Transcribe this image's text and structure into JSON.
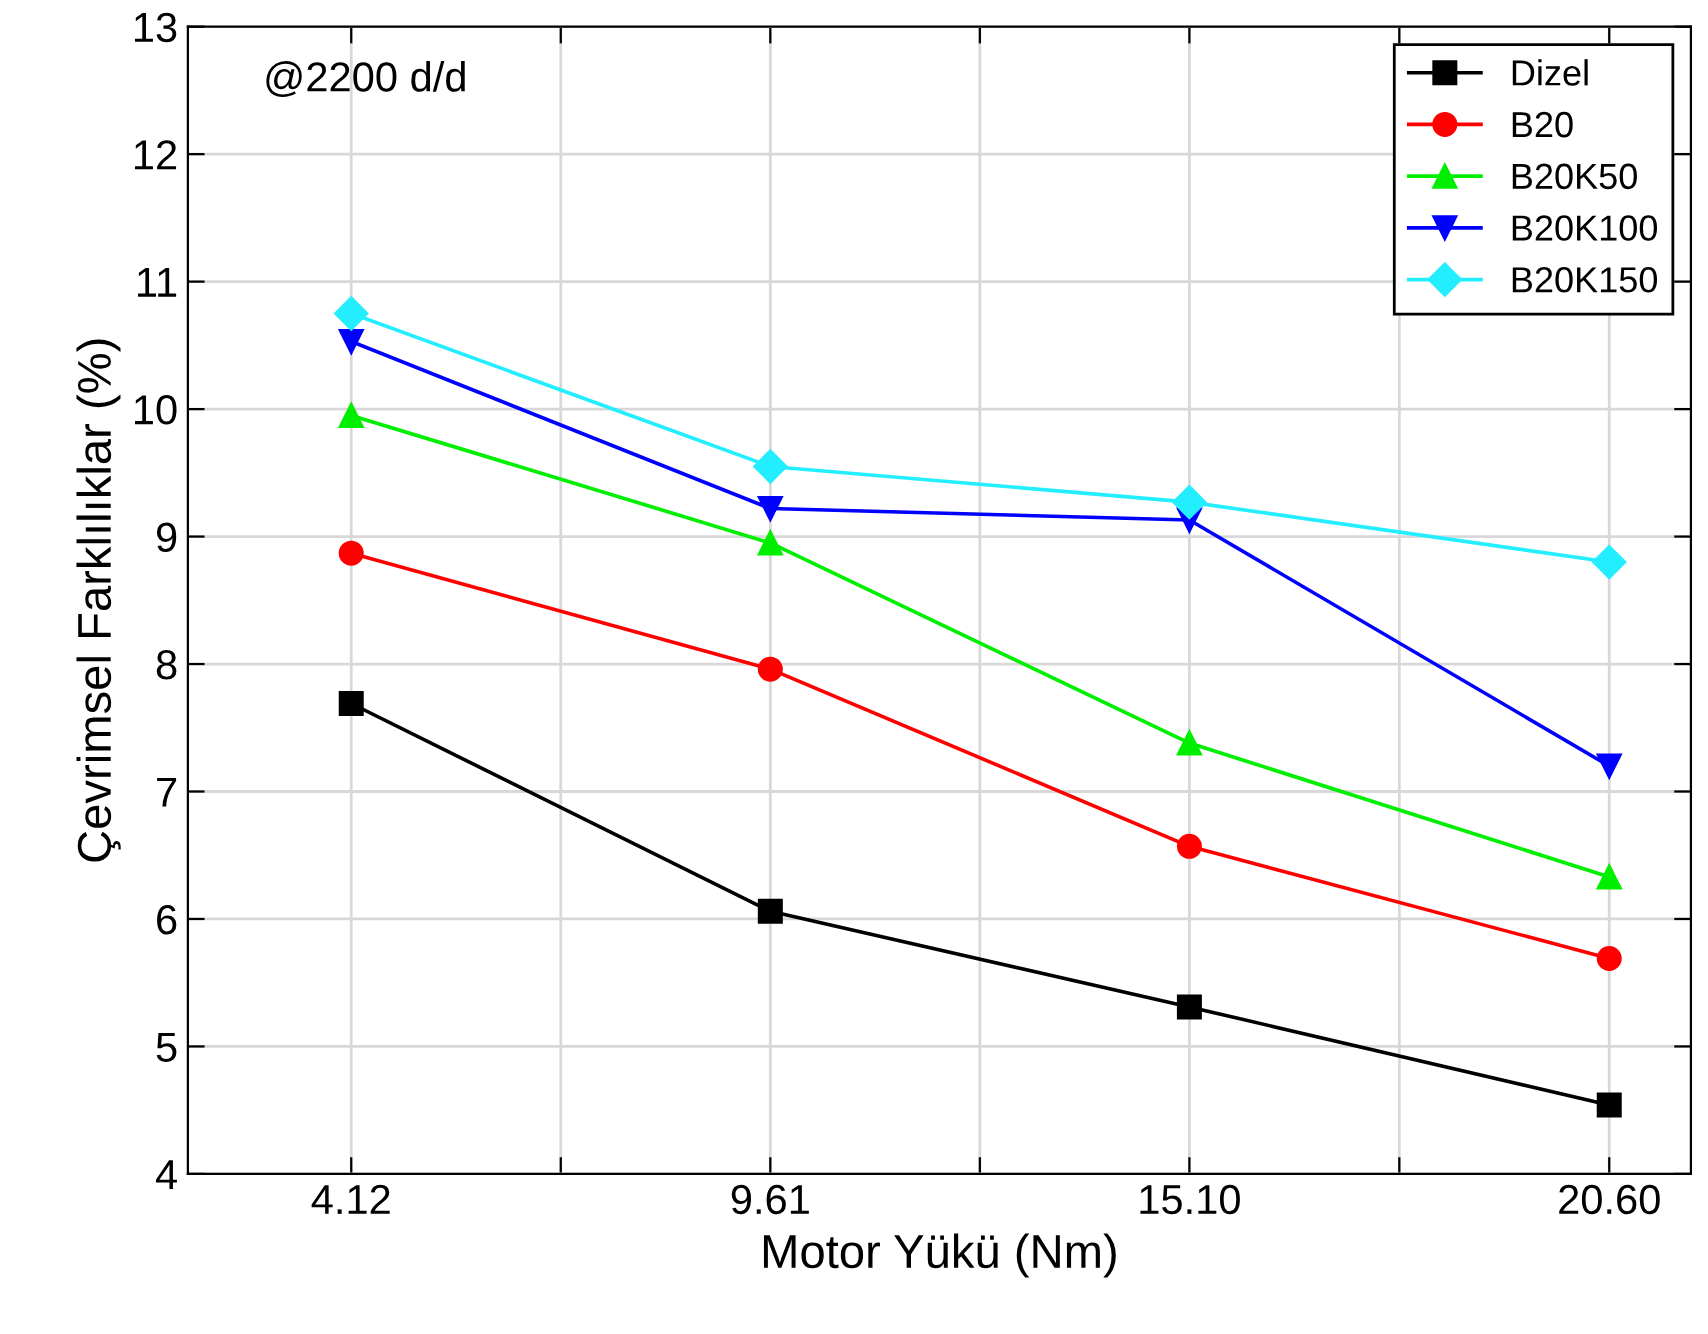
{
  "chart_data": {
    "type": "line",
    "xlabel": "Motor Yükü (Nm)",
    "ylabel": "Çevrimsel Farklılıklar (%)",
    "annotations": [
      "@2200 d/d"
    ],
    "x": [
      4.12,
      9.61,
      15.1,
      20.6
    ],
    "series": [
      {
        "name": "Dizel",
        "color": "#000000",
        "marker": "square",
        "values": [
          7.69,
          6.06,
          5.31,
          4.54
        ]
      },
      {
        "name": "B20",
        "color": "#ff0000",
        "marker": "circle",
        "values": [
          8.87,
          7.96,
          6.57,
          5.69
        ]
      },
      {
        "name": "B20K50",
        "color": "#00ee00",
        "marker": "triangle",
        "values": [
          9.95,
          8.95,
          7.38,
          6.33
        ]
      },
      {
        "name": "B20K100",
        "color": "#0000ff",
        "marker": "triangle_down",
        "values": [
          10.53,
          9.22,
          9.13,
          7.2
        ]
      },
      {
        "name": "B20K150",
        "color": "#22eeff",
        "marker": "diamond",
        "values": [
          10.75,
          9.55,
          9.27,
          8.8
        ]
      }
    ],
    "xlim": [
      1.98,
      21.67
    ],
    "xticks": [
      4.12,
      {
        "value": 6.865,
        "label": null
      },
      9.61,
      {
        "value": 12.355,
        "label": null
      },
      {
        "value": 15.1,
        "label": "15.10"
      },
      {
        "value": 17.85,
        "label": null
      },
      {
        "value": 20.6,
        "label": "20.60"
      }
    ],
    "ylim": [
      4,
      13
    ],
    "yticks": [
      4,
      5,
      6,
      7,
      8,
      9,
      10,
      11,
      12,
      13
    ],
    "grid": true,
    "legend": "top right",
    "line_style": "solid"
  }
}
